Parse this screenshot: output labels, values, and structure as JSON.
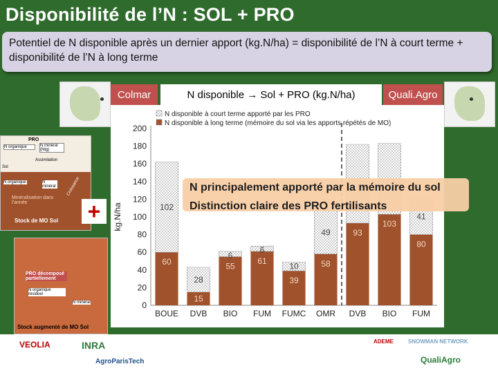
{
  "slide": {
    "title": "Disponibilité de l’N : SOL + PRO",
    "definition": "Potentiel de N disponible après un dernier apport (kg.N/ha) = disponibilité de l’N à court terme + disponibilité de l’N à long terme",
    "site_left": "Colmar",
    "site_right": "Quali.Agro",
    "chart_heading": "N disponible → Sol +  PRO (kg.N/ha)",
    "callout_line1": "N principalement apporté par la mémoire du sol",
    "callout_line2": "Distinction claire des PRO fertilisants",
    "plus_sign": "+"
  },
  "diagram": {
    "top": {
      "pro": "PRO",
      "n_organique": "N organique",
      "n_mineral_tag": "N minéral (Ntg)",
      "assimilation": "Assimilation",
      "sol": "Sol",
      "n_org_box": "N organique",
      "n_min_box": "N minéral",
      "mineralisation": "Minéralisation dans l’année",
      "stock": "Stock de MO Sol",
      "croissance": "Croissance"
    },
    "bottom": {
      "pro_decompose": "PRO décomposé partiellement",
      "n_residuel": "N organique résiduel",
      "n_mineral": "N minéral",
      "stock_augmente": "Stock augmenté de MO Sol"
    }
  },
  "logos": [
    "VEOLIA",
    "INRA",
    "AgroParisTech",
    "SNOWMAN NETWORK",
    "ADEME",
    "QualiAgro"
  ],
  "colors": {
    "background": "#2f6b2c",
    "soil_bar": "#a0522d",
    "dotted_bar": "#ffffff",
    "tag": "#c0504d",
    "callout": "#f8cfa7"
  },
  "chart_data": {
    "type": "bar",
    "stacked": true,
    "ylabel": "kg.N/ha",
    "ylim": [
      0,
      200
    ],
    "yticks": [
      0,
      20,
      40,
      60,
      80,
      100,
      120,
      140,
      160,
      180,
      200
    ],
    "categories": [
      "BOUE",
      "DVB",
      "BIO",
      "FUM",
      "FUMC",
      "OMR",
      "DVB",
      "BIO",
      "FUM"
    ],
    "series": [
      {
        "name": "N disponible à long terme (mémoire du sol via les apports répétés de MO)",
        "pattern": "solid",
        "values": [
          60,
          15,
          55,
          61,
          39,
          58,
          93,
          103,
          80
        ]
      },
      {
        "name": "N disponible à court terme apporté par les PRO",
        "pattern": "dotted",
        "values": [
          102,
          28,
          6,
          6,
          10,
          49,
          89,
          80,
          41
        ]
      }
    ],
    "data_labels_solid": [
      "60",
      "15",
      "55",
      "61",
      "39",
      "58",
      "93",
      "103",
      "80"
    ],
    "data_labels_dotted": [
      "102",
      "28",
      "6",
      "6",
      "10",
      "49",
      "",
      "",
      "41"
    ],
    "separator_after_index": 5,
    "legend_position": "top-left"
  }
}
